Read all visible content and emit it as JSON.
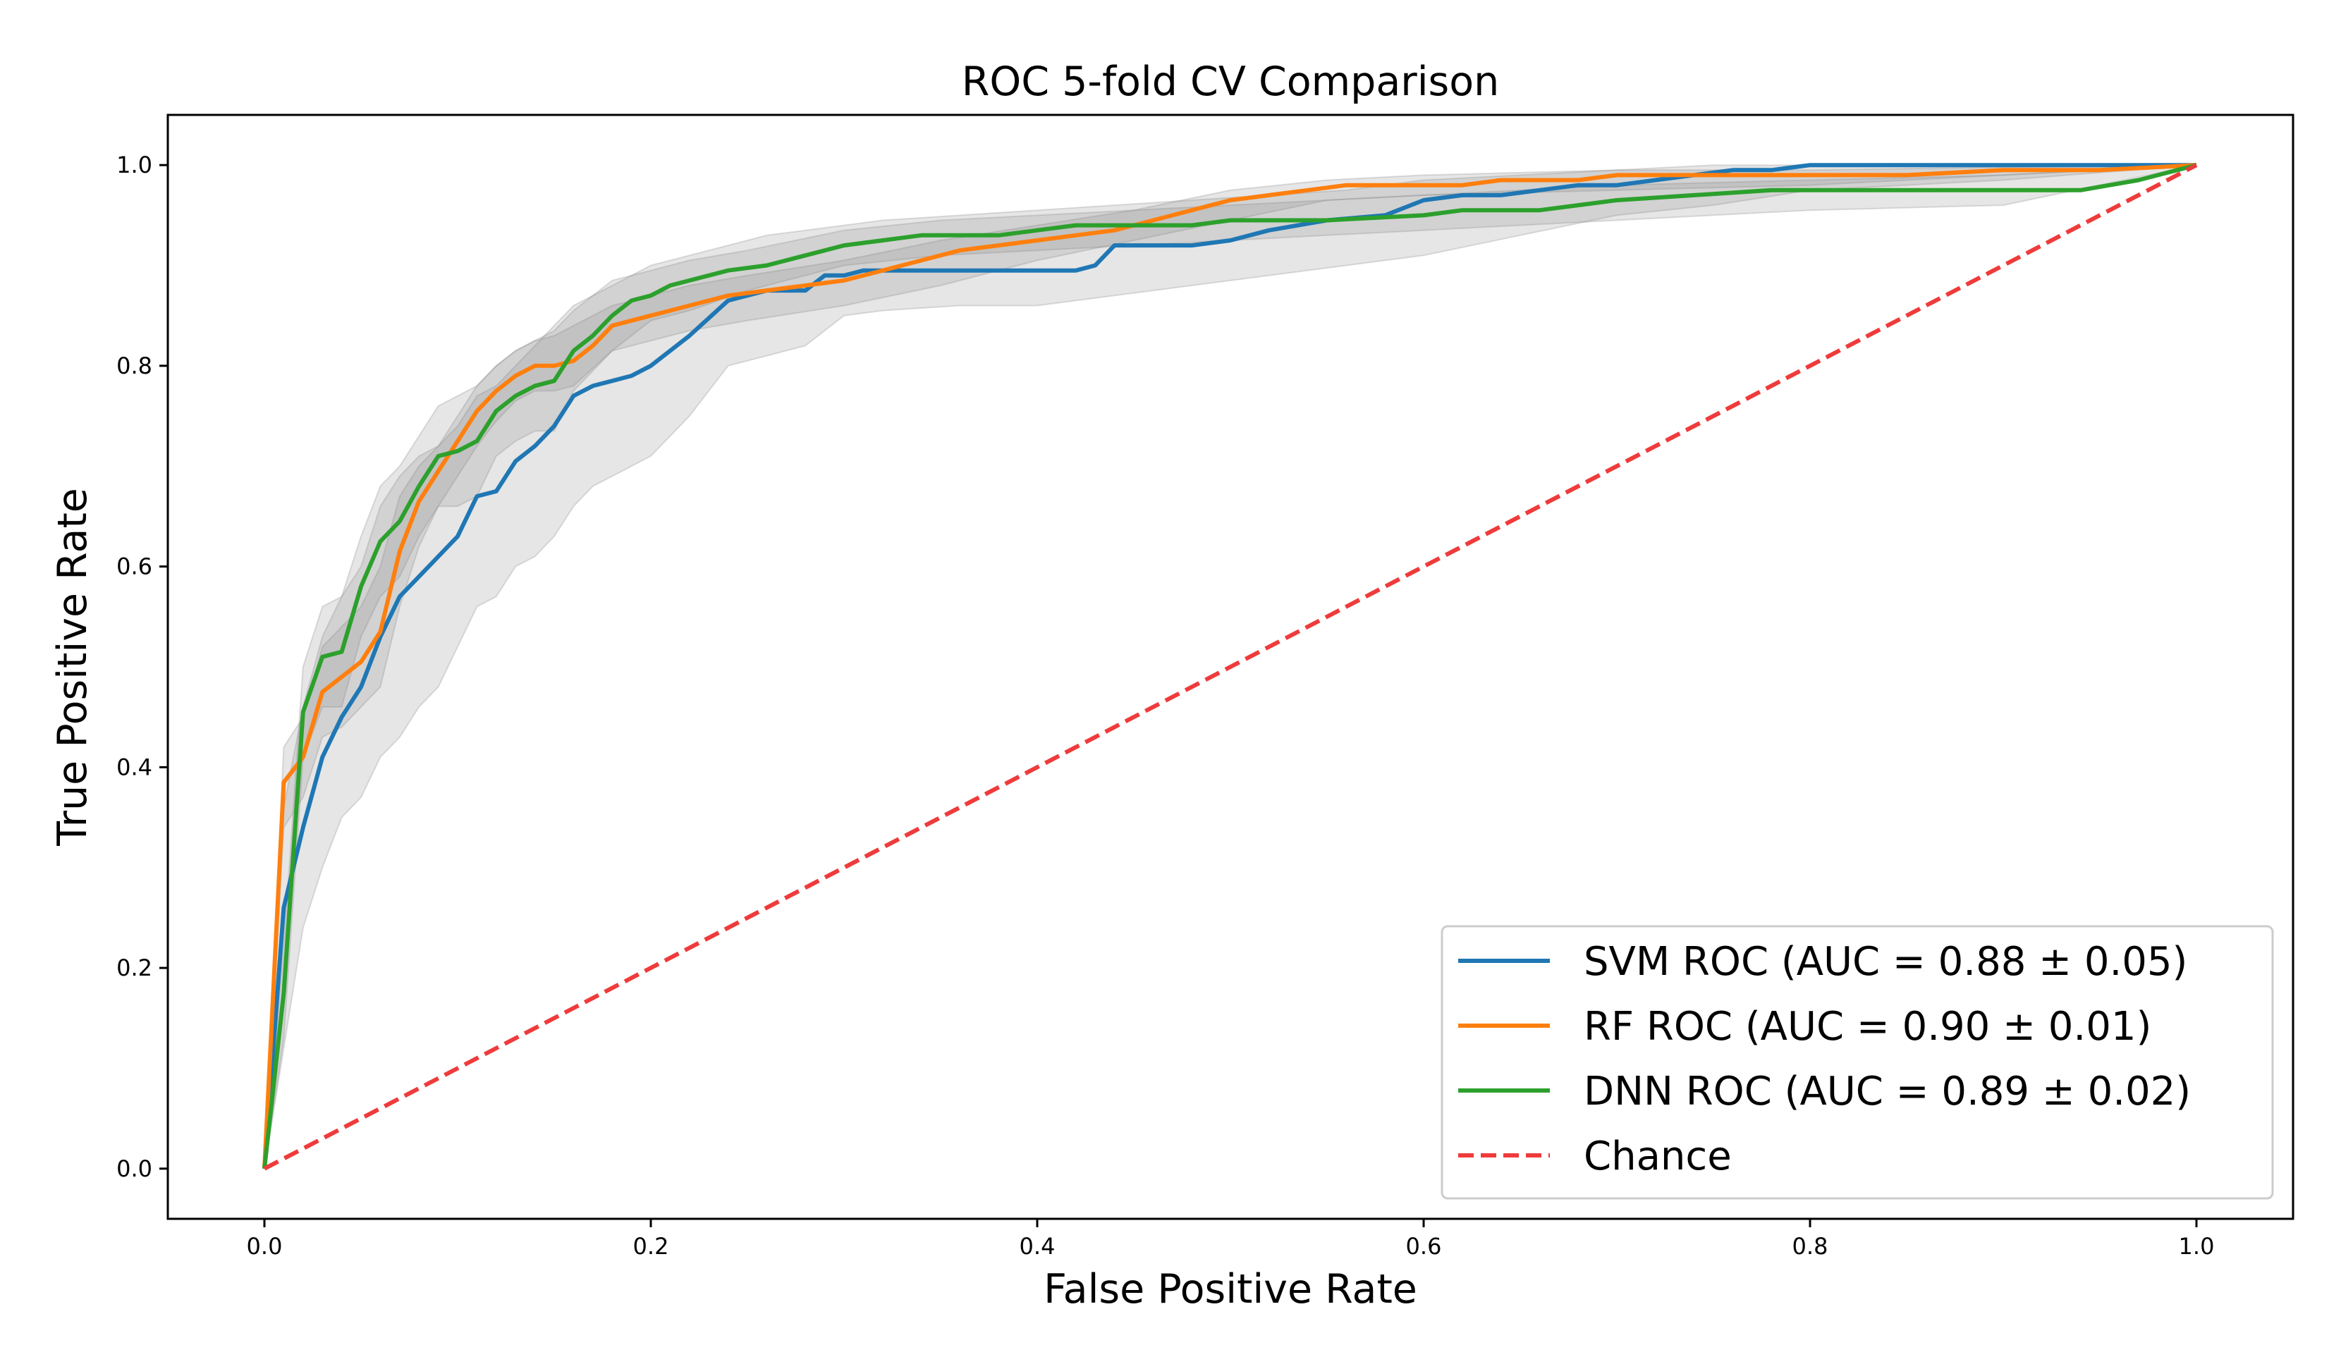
{
  "chart_data": {
    "type": "line",
    "title": "ROC 5-fold CV Comparison",
    "xlabel": "False Positive Rate",
    "ylabel": "True Positive Rate",
    "xlim": [
      -0.05,
      1.05
    ],
    "ylim": [
      -0.05,
      1.05
    ],
    "xticks": [
      "0.0",
      "0.2",
      "0.4",
      "0.6",
      "0.8",
      "1.0"
    ],
    "xtick_values": [
      0.0,
      0.2,
      0.4,
      0.6,
      0.8,
      1.0
    ],
    "yticks": [
      "0.0",
      "0.2",
      "0.4",
      "0.6",
      "0.8",
      "1.0"
    ],
    "ytick_values": [
      0.0,
      0.2,
      0.4,
      0.6,
      0.8,
      1.0
    ],
    "grid": false,
    "legend_position": "lower-right",
    "series": [
      {
        "name": "SVM ROC (AUC = 0.88 ± 0.05)",
        "color": "#1f77b4",
        "style": "solid",
        "x": [
          0,
          0.01,
          0.02,
          0.03,
          0.04,
          0.05,
          0.06,
          0.07,
          0.08,
          0.09,
          0.1,
          0.11,
          0.12,
          0.13,
          0.14,
          0.15,
          0.16,
          0.17,
          0.18,
          0.19,
          0.2,
          0.22,
          0.24,
          0.26,
          0.28,
          0.29,
          0.3,
          0.31,
          0.32,
          0.34,
          0.36,
          0.38,
          0.4,
          0.42,
          0.43,
          0.44,
          0.46,
          0.48,
          0.5,
          0.52,
          0.55,
          0.58,
          0.6,
          0.62,
          0.64,
          0.66,
          0.68,
          0.7,
          0.72,
          0.74,
          0.76,
          0.78,
          0.8,
          0.85,
          0.9,
          0.95,
          1.0
        ],
        "y": [
          0,
          0.26,
          0.34,
          0.41,
          0.45,
          0.48,
          0.53,
          0.57,
          0.59,
          0.61,
          0.63,
          0.67,
          0.675,
          0.705,
          0.72,
          0.74,
          0.77,
          0.78,
          0.785,
          0.79,
          0.8,
          0.83,
          0.865,
          0.875,
          0.875,
          0.89,
          0.89,
          0.895,
          0.895,
          0.895,
          0.895,
          0.895,
          0.895,
          0.895,
          0.9,
          0.92,
          0.92,
          0.92,
          0.925,
          0.935,
          0.945,
          0.95,
          0.965,
          0.97,
          0.97,
          0.975,
          0.98,
          0.98,
          0.985,
          0.99,
          0.995,
          0.995,
          1.0,
          1.0,
          1.0,
          1.0,
          1.0
        ]
      },
      {
        "name": "RF ROC (AUC = 0.90 ± 0.01)",
        "color": "#ff7f0e",
        "style": "solid",
        "x": [
          0,
          0.01,
          0.02,
          0.03,
          0.04,
          0.05,
          0.06,
          0.07,
          0.08,
          0.09,
          0.1,
          0.11,
          0.12,
          0.13,
          0.14,
          0.15,
          0.16,
          0.17,
          0.18,
          0.19,
          0.2,
          0.21,
          0.22,
          0.24,
          0.26,
          0.28,
          0.3,
          0.32,
          0.34,
          0.36,
          0.38,
          0.4,
          0.42,
          0.44,
          0.46,
          0.48,
          0.5,
          0.52,
          0.54,
          0.56,
          0.58,
          0.6,
          0.62,
          0.64,
          0.66,
          0.68,
          0.7,
          0.72,
          0.76,
          0.8,
          0.85,
          0.9,
          0.95,
          1.0
        ],
        "y": [
          0,
          0.385,
          0.41,
          0.475,
          0.49,
          0.505,
          0.535,
          0.615,
          0.665,
          0.695,
          0.725,
          0.755,
          0.775,
          0.79,
          0.8,
          0.8,
          0.805,
          0.82,
          0.84,
          0.845,
          0.85,
          0.855,
          0.86,
          0.87,
          0.875,
          0.88,
          0.885,
          0.895,
          0.905,
          0.915,
          0.92,
          0.925,
          0.93,
          0.935,
          0.945,
          0.955,
          0.965,
          0.97,
          0.975,
          0.98,
          0.98,
          0.98,
          0.98,
          0.985,
          0.985,
          0.985,
          0.99,
          0.99,
          0.99,
          0.99,
          0.99,
          0.995,
          0.995,
          1.0
        ]
      },
      {
        "name": "DNN ROC (AUC = 0.89 ± 0.02)",
        "color": "#2ca02c",
        "style": "solid",
        "x": [
          0,
          0.01,
          0.02,
          0.03,
          0.04,
          0.05,
          0.06,
          0.07,
          0.08,
          0.09,
          0.1,
          0.11,
          0.12,
          0.13,
          0.14,
          0.15,
          0.16,
          0.17,
          0.18,
          0.19,
          0.2,
          0.21,
          0.22,
          0.24,
          0.26,
          0.28,
          0.3,
          0.32,
          0.34,
          0.36,
          0.38,
          0.4,
          0.42,
          0.44,
          0.46,
          0.48,
          0.5,
          0.55,
          0.6,
          0.62,
          0.66,
          0.68,
          0.7,
          0.74,
          0.78,
          0.82,
          0.86,
          0.9,
          0.94,
          0.97,
          1.0
        ],
        "y": [
          0,
          0.175,
          0.455,
          0.51,
          0.515,
          0.58,
          0.625,
          0.645,
          0.68,
          0.71,
          0.715,
          0.725,
          0.755,
          0.77,
          0.78,
          0.785,
          0.815,
          0.83,
          0.85,
          0.865,
          0.87,
          0.88,
          0.885,
          0.895,
          0.9,
          0.91,
          0.92,
          0.925,
          0.93,
          0.93,
          0.93,
          0.935,
          0.94,
          0.94,
          0.94,
          0.94,
          0.945,
          0.945,
          0.95,
          0.955,
          0.955,
          0.96,
          0.965,
          0.97,
          0.975,
          0.975,
          0.975,
          0.975,
          0.975,
          0.985,
          1.0
        ]
      },
      {
        "name": "Chance",
        "color": "#ef3b3b",
        "style": "dashed",
        "x": [
          0,
          1
        ],
        "y": [
          0,
          1
        ]
      }
    ],
    "bands": [
      {
        "of": "SVM ROC (AUC = 0.88 ± 0.05)",
        "x": [
          0,
          0.01,
          0.02,
          0.03,
          0.04,
          0.05,
          0.06,
          0.07,
          0.08,
          0.09,
          0.1,
          0.11,
          0.12,
          0.13,
          0.14,
          0.15,
          0.16,
          0.17,
          0.18,
          0.19,
          0.2,
          0.22,
          0.24,
          0.26,
          0.28,
          0.3,
          0.32,
          0.36,
          0.4,
          0.44,
          0.48,
          0.52,
          0.56,
          0.6,
          0.65,
          0.7,
          0.75,
          0.8,
          0.9,
          1.0
        ],
        "upper": [
          0,
          0.36,
          0.46,
          0.53,
          0.57,
          0.6,
          0.66,
          0.69,
          0.71,
          0.72,
          0.74,
          0.77,
          0.78,
          0.8,
          0.82,
          0.84,
          0.86,
          0.87,
          0.88,
          0.89,
          0.9,
          0.91,
          0.92,
          0.93,
          0.935,
          0.94,
          0.945,
          0.95,
          0.955,
          0.96,
          0.965,
          0.97,
          0.975,
          0.985,
          0.99,
          0.995,
          1.0,
          1.0,
          1.0,
          1.0
        ],
        "lower": [
          0,
          0.12,
          0.24,
          0.3,
          0.35,
          0.37,
          0.41,
          0.43,
          0.46,
          0.48,
          0.52,
          0.56,
          0.57,
          0.6,
          0.61,
          0.63,
          0.66,
          0.68,
          0.69,
          0.7,
          0.71,
          0.75,
          0.8,
          0.81,
          0.82,
          0.85,
          0.855,
          0.86,
          0.86,
          0.87,
          0.88,
          0.89,
          0.9,
          0.91,
          0.93,
          0.95,
          0.96,
          0.975,
          0.985,
          1.0
        ]
      },
      {
        "of": "RF ROC (AUC = 0.90 ± 0.01)",
        "x": [
          0,
          0.01,
          0.02,
          0.03,
          0.04,
          0.05,
          0.06,
          0.07,
          0.08,
          0.09,
          0.1,
          0.11,
          0.12,
          0.13,
          0.14,
          0.15,
          0.16,
          0.18,
          0.2,
          0.22,
          0.25,
          0.3,
          0.35,
          0.4,
          0.45,
          0.5,
          0.55,
          0.6,
          0.7,
          0.8,
          0.9,
          1.0
        ],
        "upper": [
          0,
          0.42,
          0.45,
          0.52,
          0.54,
          0.56,
          0.6,
          0.67,
          0.7,
          0.72,
          0.75,
          0.78,
          0.8,
          0.815,
          0.825,
          0.83,
          0.84,
          0.86,
          0.87,
          0.88,
          0.89,
          0.905,
          0.925,
          0.94,
          0.955,
          0.975,
          0.985,
          0.99,
          0.995,
          0.995,
          0.998,
          1.0
        ],
        "lower": [
          0,
          0.34,
          0.37,
          0.43,
          0.44,
          0.46,
          0.48,
          0.56,
          0.62,
          0.66,
          0.69,
          0.72,
          0.745,
          0.765,
          0.775,
          0.775,
          0.78,
          0.815,
          0.825,
          0.835,
          0.845,
          0.86,
          0.88,
          0.905,
          0.925,
          0.945,
          0.965,
          0.97,
          0.975,
          0.98,
          0.99,
          1.0
        ]
      },
      {
        "of": "DNN ROC (AUC = 0.89 ± 0.02)",
        "x": [
          0,
          0.01,
          0.02,
          0.03,
          0.04,
          0.05,
          0.06,
          0.07,
          0.08,
          0.09,
          0.1,
          0.11,
          0.12,
          0.13,
          0.14,
          0.15,
          0.16,
          0.18,
          0.2,
          0.22,
          0.25,
          0.3,
          0.35,
          0.4,
          0.45,
          0.5,
          0.55,
          0.6,
          0.7,
          0.8,
          0.9,
          1.0
        ],
        "upper": [
          0,
          0.22,
          0.5,
          0.56,
          0.57,
          0.63,
          0.68,
          0.7,
          0.73,
          0.76,
          0.77,
          0.78,
          0.8,
          0.815,
          0.825,
          0.835,
          0.855,
          0.885,
          0.895,
          0.905,
          0.915,
          0.935,
          0.945,
          0.95,
          0.955,
          0.96,
          0.965,
          0.97,
          0.98,
          0.985,
          0.99,
          1.0
        ],
        "lower": [
          0,
          0.13,
          0.41,
          0.46,
          0.46,
          0.53,
          0.57,
          0.59,
          0.63,
          0.66,
          0.66,
          0.67,
          0.71,
          0.725,
          0.735,
          0.735,
          0.775,
          0.815,
          0.845,
          0.855,
          0.875,
          0.9,
          0.91,
          0.915,
          0.92,
          0.925,
          0.93,
          0.935,
          0.945,
          0.955,
          0.96,
          1.0
        ]
      }
    ],
    "band_color": "#808080"
  }
}
